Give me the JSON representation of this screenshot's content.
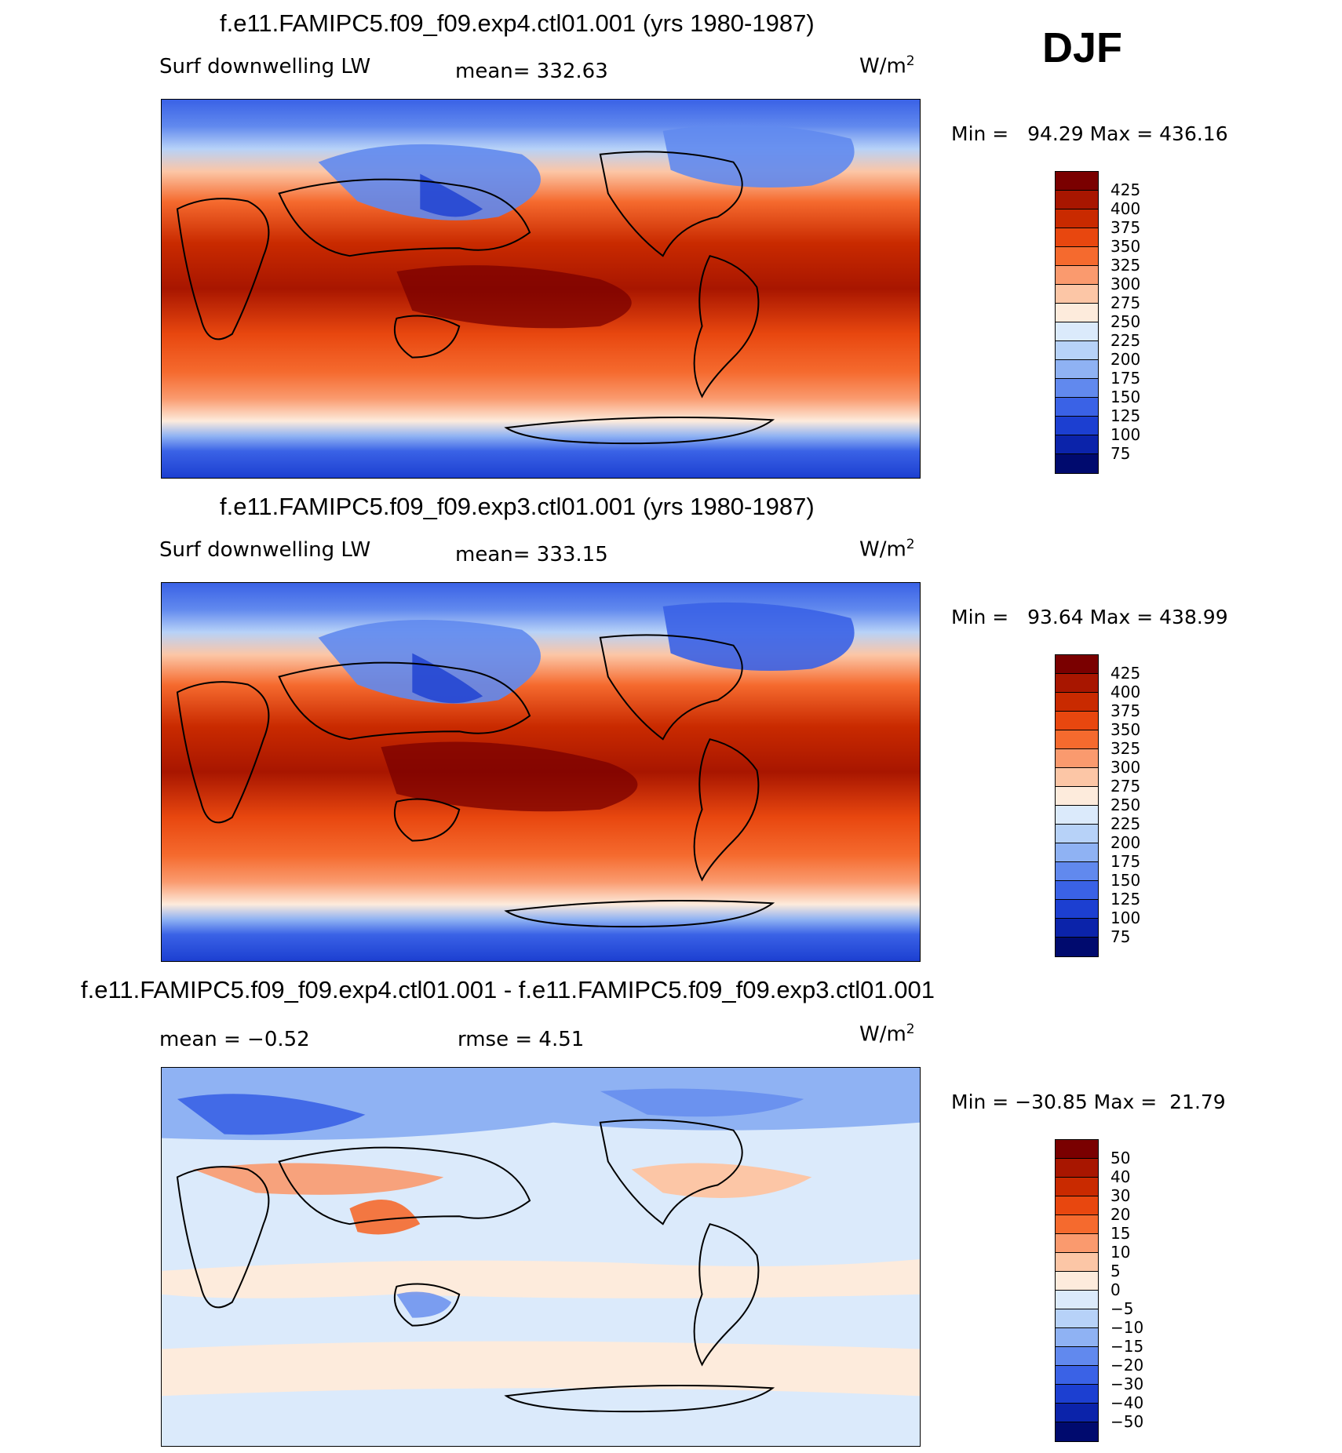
{
  "season": "DJF",
  "units_label": "W/m",
  "units_sup": "2",
  "panels": [
    {
      "title": "f.e11.FAMIPC5.f09_f09.exp4.ctl01.001 (yrs 1980-1987)",
      "variable": "Surf downwelling LW",
      "mean_text": "mean= 332.63",
      "minmax_text": "Min =   94.29 Max = 436.16"
    },
    {
      "title": "f.e11.FAMIPC5.f09_f09.exp3.ctl01.001 (yrs 1980-1987)",
      "variable": "Surf downwelling LW",
      "mean_text": "mean= 333.15",
      "minmax_text": "Min =   93.64 Max = 438.99"
    },
    {
      "title": "f.e11.FAMIPC5.f09_f09.exp4.ctl01.001 - f.e11.FAMIPC5.f09_f09.exp3.ctl01.001",
      "mean_text": "mean =   −0.52",
      "rmse_text": "rmse =    4.51",
      "minmax_text": "Min = −30.85 Max =  21.79"
    }
  ],
  "colorbars": {
    "absolute": {
      "labels": [
        "425",
        "400",
        "375",
        "350",
        "325",
        "300",
        "275",
        "250",
        "225",
        "200",
        "175",
        "150",
        "125",
        "100",
        "75"
      ],
      "colors": [
        "#7a0000",
        "#a81600",
        "#c92a00",
        "#e8470f",
        "#f56a2e",
        "#fa9a6e",
        "#fcc6a6",
        "#fdebdc",
        "#dbeafb",
        "#b7d2f8",
        "#8fb2f3",
        "#6189ee",
        "#3a62e6",
        "#1c3fd1",
        "#0b23aa",
        "#000a6e"
      ]
    },
    "difference": {
      "labels": [
        "50",
        "40",
        "30",
        "20",
        "15",
        "10",
        "5",
        "0",
        "−5",
        "−10",
        "−15",
        "−20",
        "−30",
        "−40",
        "−50"
      ],
      "colors": [
        "#7a0000",
        "#a81600",
        "#c92a00",
        "#e8470f",
        "#f56a2e",
        "#fa9a6e",
        "#fcc6a6",
        "#fdebdc",
        "#dbeafb",
        "#b7d2f8",
        "#8fb2f3",
        "#6189ee",
        "#3a62e6",
        "#1c3fd1",
        "#0b23aa",
        "#000a6e"
      ]
    }
  },
  "chart_data": [
    {
      "type": "heatmap",
      "title": "f.e11.FAMIPC5.f09_f09.exp4.ctl01.001 (yrs 1980-1987)",
      "variable": "Surf downwelling LW",
      "units": "W/m2",
      "season": "DJF",
      "mean": 332.63,
      "min": 94.29,
      "max": 436.16,
      "contour_levels": [
        75,
        100,
        125,
        150,
        175,
        200,
        225,
        250,
        275,
        300,
        325,
        350,
        375,
        400,
        425
      ]
    },
    {
      "type": "heatmap",
      "title": "f.e11.FAMIPC5.f09_f09.exp3.ctl01.001 (yrs 1980-1987)",
      "variable": "Surf downwelling LW",
      "units": "W/m2",
      "season": "DJF",
      "mean": 333.15,
      "min": 93.64,
      "max": 438.99,
      "contour_levels": [
        75,
        100,
        125,
        150,
        175,
        200,
        225,
        250,
        275,
        300,
        325,
        350,
        375,
        400,
        425
      ]
    },
    {
      "type": "heatmap",
      "title": "f.e11.FAMIPC5.f09_f09.exp4.ctl01.001 - f.e11.FAMIPC5.f09_f09.exp3.ctl01.001",
      "units": "W/m2",
      "season": "DJF",
      "mean": -0.52,
      "rmse": 4.51,
      "min": -30.85,
      "max": 21.79,
      "contour_levels": [
        -50,
        -40,
        -30,
        -20,
        -15,
        -10,
        -5,
        0,
        5,
        10,
        15,
        20,
        30,
        40,
        50
      ]
    }
  ]
}
